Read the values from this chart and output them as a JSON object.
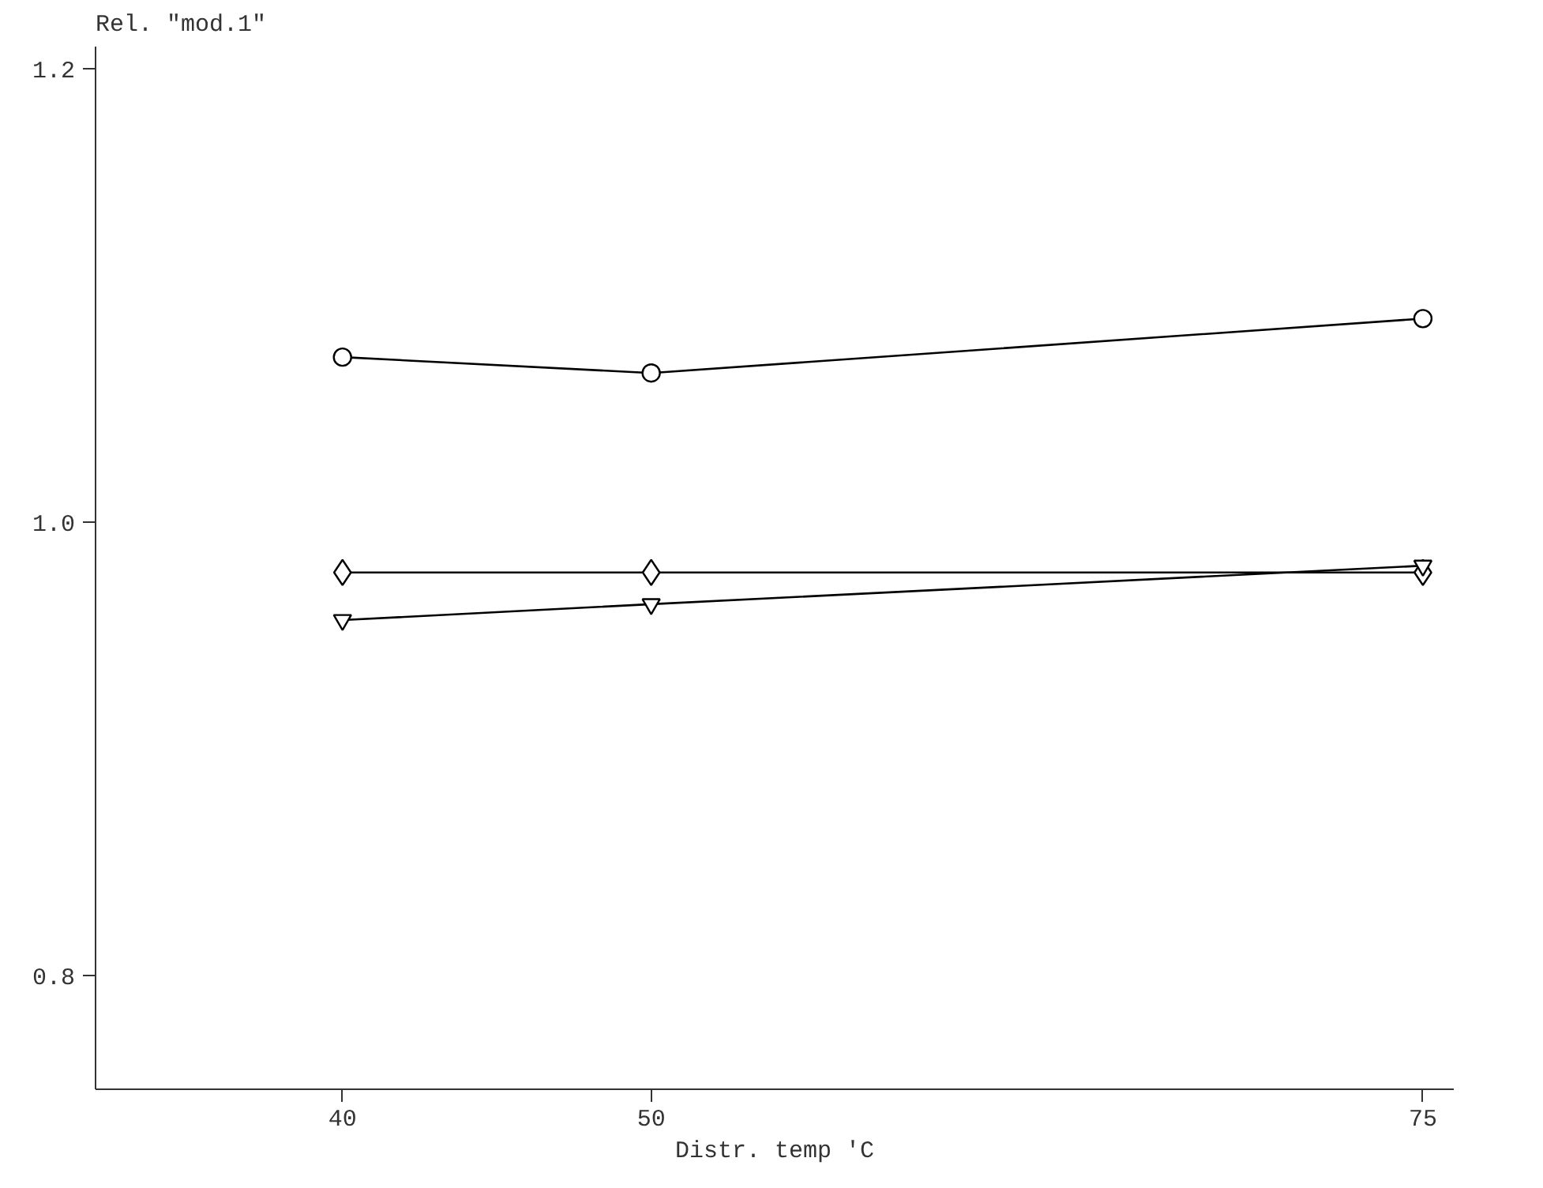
{
  "chart_data": {
    "type": "line",
    "xlabel": "Distr. temp 'C",
    "ylabel": "Rel. \"mod.1\"",
    "x": [
      40,
      50,
      75
    ],
    "series": [
      {
        "color": "#000000",
        "marker": "circle",
        "values": [
          1.073,
          1.066,
          1.09
        ]
      },
      {
        "color": "#000000",
        "marker": "diamond",
        "values": [
          0.978,
          0.978,
          0.978
        ]
      },
      {
        "color": "#000000",
        "marker": "triangle",
        "values": [
          0.957,
          0.964,
          0.981
        ]
      }
    ],
    "xlim": [
      32,
      76
    ],
    "ylim": [
      0.75,
      1.21
    ],
    "xticks": [
      40,
      50,
      75
    ],
    "yticks": [
      0.8,
      {
        "value": 1.0,
        "label": "1.0"
      },
      1.2
    ],
    "grid": false
  }
}
